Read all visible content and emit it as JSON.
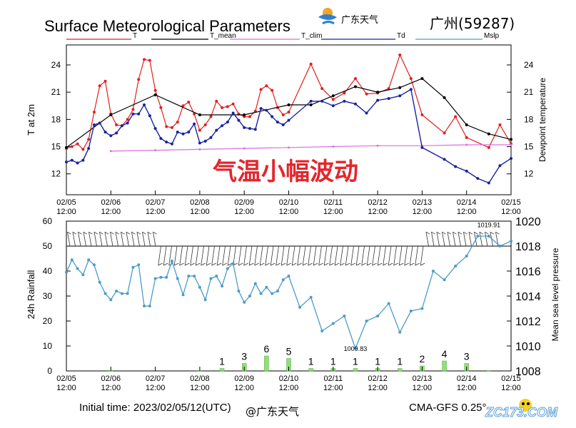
{
  "header": {
    "title": "Surface Meteorological Parameters",
    "logo_text": "广东天气",
    "station": "广州(59287)"
  },
  "footer": {
    "initial_time": "Initial time: 2023/02/05/12(UTC)",
    "weibo": "@广东天气",
    "model": "CMA-GFS  0.25°",
    "watermark": "ZC173.COM"
  },
  "colors": {
    "T": "#e0201e",
    "T_mean": "#000000",
    "T_clim": "#dd6ee0",
    "Td": "#1a22a0",
    "Mslp": "#4b9cc9",
    "rain": "#8ee07a",
    "overlay": "#e4262c"
  },
  "overlay_text": "气温小幅波动",
  "x_ticks": [
    "02/05\n12:00",
    "02/06\n12:00",
    "02/07\n12:00",
    "02/08\n12:00",
    "02/09\n12:00",
    "02/10\n12:00",
    "02/11\n12:00",
    "02/12\n12:00",
    "02/13\n12:00",
    "02/14\n12:00",
    "02/15\n12:00"
  ],
  "chart_data": [
    {
      "type": "line",
      "legend": [
        "T",
        "T_mean",
        "T_clim",
        "Td",
        "Mslp"
      ],
      "ylabel": "T at 2m",
      "y2label": "Dewpoint temperature",
      "ylim": [
        9.7,
        26.2
      ],
      "yticks": [
        12,
        15,
        18,
        21,
        24
      ],
      "x_unit": "days since 02/05 12:00",
      "xlim": [
        0,
        10
      ],
      "series": [
        {
          "name": "T",
          "x": [
            0,
            0.125,
            0.25,
            0.375,
            0.5,
            0.625,
            0.75,
            0.875,
            1,
            1.125,
            1.25,
            1.375,
            1.5,
            1.625,
            1.75,
            1.875,
            2,
            2.125,
            2.25,
            2.375,
            2.5,
            2.625,
            2.75,
            2.875,
            3,
            3.125,
            3.25,
            3.375,
            3.5,
            3.625,
            3.75,
            3.875,
            4,
            4.125,
            4.25,
            4.375,
            4.5,
            4.625,
            4.75,
            4.875,
            5,
            5.5,
            5.75,
            6,
            6.25,
            6.5,
            6.75,
            7,
            7.25,
            7.5,
            7.75,
            8,
            8.5,
            8.75,
            9,
            9.5,
            9.75,
            10
          ],
          "values": [
            14.8,
            15.0,
            15.3,
            14.7,
            15.8,
            18.8,
            21.7,
            22.2,
            18.6,
            17.4,
            17.3,
            18.0,
            19.1,
            22.4,
            24.6,
            24.5,
            21.2,
            19.3,
            17.2,
            17.1,
            17.7,
            19.5,
            19.9,
            18.6,
            16.8,
            17.4,
            18.3,
            20.0,
            19.3,
            19.4,
            19.7,
            18.6,
            18.3,
            18.3,
            18.9,
            21.3,
            21.7,
            21.2,
            19.3,
            18.5,
            18.8,
            24.1,
            21.4,
            20.2,
            20.9,
            22.5,
            20.8,
            20.9,
            21.4,
            25.1,
            22.5,
            18.5,
            16.5,
            18.3,
            16.0,
            14.9,
            17.4,
            15.3
          ]
        },
        {
          "name": "T_mean",
          "x": [
            0,
            1,
            2,
            3,
            4,
            5,
            5.5,
            6,
            6.5,
            7,
            7.5,
            8,
            8.5,
            9,
            9.5,
            10
          ],
          "values": [
            14.9,
            18.5,
            20.7,
            18.5,
            18.5,
            19.6,
            19.6,
            20.6,
            21.6,
            21.0,
            21.5,
            22.5,
            20.4,
            17.4,
            16.4,
            15.8
          ]
        },
        {
          "name": "T_clim",
          "x": [
            1,
            2,
            3,
            4,
            5,
            6,
            7,
            8,
            9,
            10
          ],
          "values": [
            14.5,
            14.6,
            14.7,
            14.8,
            14.9,
            15.0,
            15.1,
            15.1,
            15.2,
            15.2
          ]
        },
        {
          "name": "Td",
          "x": [
            0,
            0.125,
            0.25,
            0.375,
            0.5,
            0.625,
            0.75,
            0.875,
            1,
            1.125,
            1.25,
            1.375,
            1.5,
            1.625,
            1.75,
            1.875,
            2,
            2.125,
            2.25,
            2.375,
            2.5,
            2.625,
            2.75,
            2.875,
            3,
            3.125,
            3.25,
            3.375,
            3.5,
            3.625,
            3.75,
            3.875,
            4,
            4.125,
            4.25,
            4.375,
            4.5,
            4.625,
            4.75,
            4.875,
            5,
            5.5,
            5.75,
            6,
            6.25,
            6.5,
            6.75,
            7,
            7.25,
            7.5,
            7.75,
            8,
            8.5,
            8.75,
            9,
            9.25,
            9.5,
            9.75,
            10
          ],
          "values": [
            13.3,
            13.5,
            13.2,
            13.5,
            14.8,
            17.4,
            17.6,
            16.6,
            16.2,
            16.5,
            17.3,
            17.6,
            18.6,
            18.6,
            19.6,
            18.4,
            17.0,
            15.9,
            15.5,
            15.3,
            16.6,
            16.4,
            16.6,
            17.5,
            15.4,
            15.6,
            16.0,
            16.8,
            17.3,
            17.7,
            18.7,
            17.9,
            17.1,
            17.0,
            16.9,
            19.2,
            19.0,
            18.3,
            17.7,
            17.4,
            17.9,
            20.0,
            20.0,
            19.5,
            20.0,
            19.7,
            18.7,
            20.1,
            20.3,
            20.6,
            21.3,
            14.9,
            13.6,
            12.8,
            12.3,
            11.5,
            11.0,
            12.9,
            13.7
          ]
        },
        {
          "name": "Mslp",
          "x": [],
          "values": []
        }
      ]
    },
    {
      "type": "bar",
      "ylabel": "24h Rainfall",
      "y2label": "Mean sea level pressure",
      "ylim": [
        0,
        60
      ],
      "yticks": [
        0,
        10,
        20,
        30,
        40,
        50,
        60
      ],
      "y2lim": [
        1008,
        1020
      ],
      "y2ticks": [
        1008,
        1010,
        1012,
        1014,
        1016,
        1018,
        1020
      ],
      "rain_x": [
        1,
        3,
        3.5,
        4,
        4.5,
        5,
        5.5,
        6,
        6.5,
        7,
        7.5,
        8,
        8.5,
        9,
        9.5
      ],
      "rain_values": [
        0.2,
        0.2,
        1,
        3,
        6,
        5,
        1,
        1,
        1,
        1,
        1,
        2,
        4,
        3,
        0.2
      ],
      "rain_labels": [
        "",
        "",
        "1",
        "3",
        "6",
        "5",
        "1",
        "1",
        "1",
        "1",
        "1",
        "2",
        "4",
        "3",
        ""
      ],
      "mslp_x": [
        0,
        0.125,
        0.25,
        0.375,
        0.5,
        0.625,
        0.75,
        0.875,
        1,
        1.125,
        1.25,
        1.375,
        1.5,
        1.625,
        1.75,
        1.875,
        2,
        2.125,
        2.25,
        2.375,
        2.5,
        2.625,
        2.75,
        2.875,
        3,
        3.125,
        3.25,
        3.375,
        3.5,
        3.625,
        3.75,
        3.875,
        4,
        4.125,
        4.25,
        4.375,
        4.5,
        4.625,
        4.75,
        4.875,
        5,
        5.25,
        5.5,
        5.75,
        6,
        6.25,
        6.5,
        6.75,
        7,
        7.25,
        7.5,
        7.75,
        8,
        8.25,
        8.5,
        8.75,
        9,
        9.25,
        9.5,
        9.75,
        10
      ],
      "mslp_values": [
        1015.9,
        1016.9,
        1016.2,
        1015.7,
        1016.9,
        1016.5,
        1015.1,
        1014.2,
        1013.7,
        1014.4,
        1014.2,
        1014.2,
        1016.3,
        1016.5,
        1013.2,
        1013.2,
        1015.4,
        1015.5,
        1015.5,
        1016.8,
        1015.4,
        1014.1,
        1015.6,
        1015.6,
        1014.7,
        1013.7,
        1015.4,
        1015.6,
        1014.8,
        1016.2,
        1016.6,
        1014.4,
        1013.5,
        1014.0,
        1015.0,
        1014.2,
        1014.7,
        1014.2,
        1014.4,
        1015.3,
        1015.6,
        1013.1,
        1013.9,
        1011.2,
        1011.8,
        1012.4,
        1009.8,
        1012.0,
        1012.4,
        1013.4,
        1011.1,
        1012.8,
        1013.0,
        1016.0,
        1015.3,
        1016.4,
        1017.2,
        1018.8,
        1018.8,
        1018.0,
        1018.4
      ],
      "annotations": [
        {
          "text": "1019.91",
          "x": 9.5,
          "y": 1019.91,
          "color": "#e0201e"
        },
        {
          "text": "1009.83",
          "x": 6.5,
          "y": 1009.83,
          "color": "#1a22a0"
        }
      ]
    }
  ]
}
